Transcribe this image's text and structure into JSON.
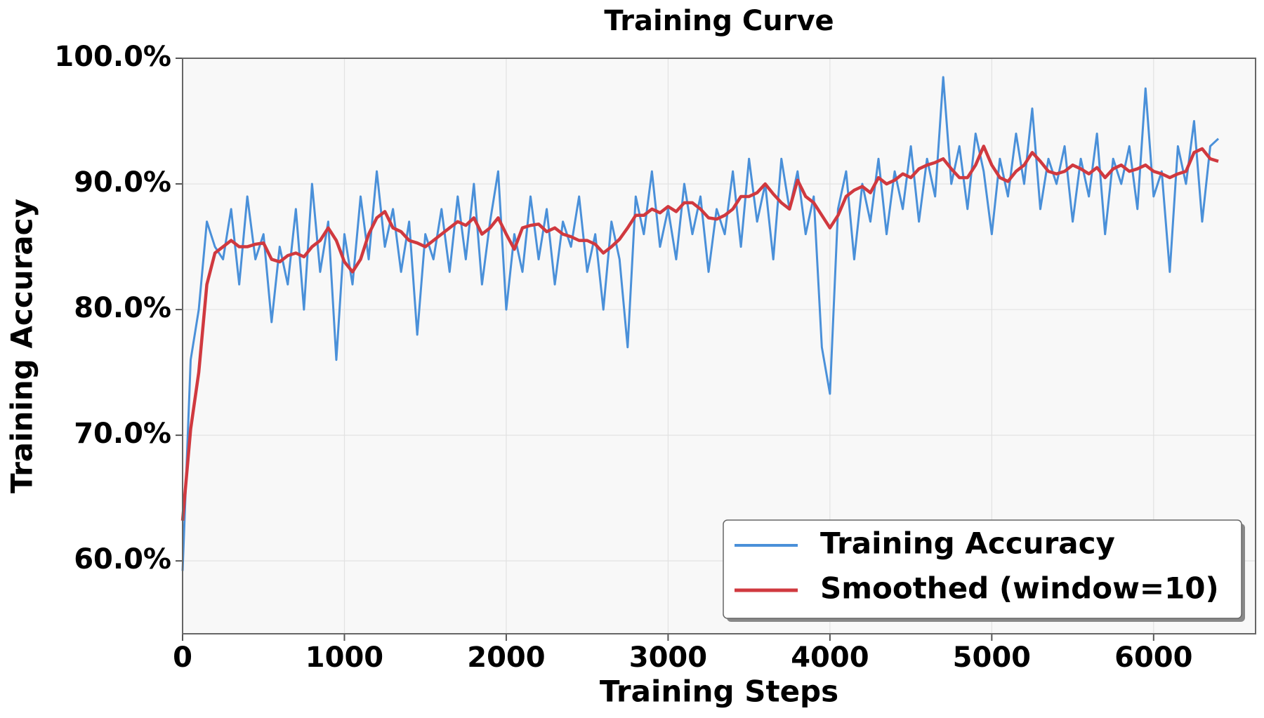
{
  "chart_data": {
    "type": "line",
    "title": "Training Curve",
    "x_label": "Training Steps",
    "y_label": "Training Accuracy",
    "x": [
      0,
      50,
      100,
      150,
      200,
      250,
      300,
      350,
      400,
      450,
      500,
      550,
      600,
      650,
      700,
      750,
      800,
      850,
      900,
      950,
      1000,
      1050,
      1100,
      1150,
      1200,
      1250,
      1300,
      1350,
      1400,
      1450,
      1500,
      1550,
      1600,
      1650,
      1700,
      1750,
      1800,
      1850,
      1900,
      1950,
      2000,
      2050,
      2100,
      2150,
      2200,
      2250,
      2300,
      2350,
      2400,
      2450,
      2500,
      2550,
      2600,
      2650,
      2700,
      2750,
      2800,
      2850,
      2900,
      2950,
      3000,
      3050,
      3100,
      3150,
      3200,
      3250,
      3300,
      3350,
      3400,
      3450,
      3500,
      3550,
      3600,
      3650,
      3700,
      3750,
      3800,
      3850,
      3900,
      3950,
      4000,
      4050,
      4100,
      4150,
      4200,
      4250,
      4300,
      4350,
      4400,
      4450,
      4500,
      4550,
      4600,
      4650,
      4700,
      4750,
      4800,
      4850,
      4900,
      4950,
      5000,
      5050,
      5100,
      5150,
      5200,
      5250,
      5300,
      5350,
      5400,
      5450,
      5500,
      5550,
      5600,
      5650,
      5700,
      5750,
      5800,
      5850,
      5900,
      5950,
      6000,
      6050,
      6100,
      6150,
      6200,
      6250,
      6300,
      6350,
      6400
    ],
    "series": [
      {
        "name": "Training Accuracy",
        "color": "#4a90d9",
        "values": [
          59.2,
          76,
          80,
          87,
          85,
          84,
          88,
          82,
          89,
          84,
          86,
          79,
          85,
          82,
          88,
          80,
          90,
          83,
          87,
          76,
          86,
          82,
          89,
          84,
          91,
          85,
          88,
          83,
          87,
          78,
          86,
          84,
          88,
          83,
          89,
          84,
          90,
          82,
          87,
          91,
          80,
          86,
          83,
          89,
          84,
          88,
          82,
          87,
          85,
          89,
          83,
          86,
          80,
          87,
          84,
          77,
          89,
          86,
          91,
          85,
          88,
          84,
          90,
          86,
          89,
          83,
          88,
          86,
          91,
          85,
          92,
          87,
          90,
          84,
          92,
          88,
          91,
          86,
          89,
          77,
          73.3,
          88,
          91,
          84,
          90,
          87,
          92,
          86,
          91,
          88,
          93,
          87,
          92,
          89,
          98.5,
          90,
          93,
          88,
          94,
          91,
          86,
          92,
          89,
          94,
          90,
          96,
          88,
          92,
          90,
          93,
          87,
          92,
          89,
          94,
          86,
          92,
          90,
          93,
          88,
          97.6,
          89,
          91,
          83,
          93,
          90,
          95,
          87,
          93,
          93.6
        ]
      },
      {
        "name": "Smoothed (window=10)",
        "color": "#d0393f",
        "values": [
          63.2,
          70.5,
          75,
          82,
          84.5,
          85,
          85.5,
          85,
          85,
          85.2,
          85.3,
          84,
          83.8,
          84.3,
          84.5,
          84.2,
          85,
          85.5,
          86.5,
          85.5,
          83.8,
          83,
          84,
          86,
          87.3,
          87.8,
          86.5,
          86.2,
          85.5,
          85.3,
          85,
          85.5,
          86,
          86.5,
          87,
          86.7,
          87.3,
          86,
          86.5,
          87.3,
          86,
          84.8,
          86.5,
          86.7,
          86.8,
          86.2,
          86.5,
          86,
          85.8,
          85.5,
          85.5,
          85.2,
          84.5,
          85,
          85.6,
          86.5,
          87.5,
          87.5,
          88,
          87.7,
          88.2,
          87.8,
          88.5,
          88.5,
          88,
          87.3,
          87.2,
          87.5,
          88,
          89,
          89,
          89.3,
          90,
          89.2,
          88.5,
          88,
          90.3,
          89,
          88.5,
          87.5,
          86.5,
          87.5,
          89,
          89.5,
          89.8,
          89.3,
          90.5,
          90,
          90.3,
          90.8,
          90.5,
          91.2,
          91.5,
          91.7,
          92,
          91.2,
          90.5,
          90.5,
          91.5,
          93,
          91.5,
          90.5,
          90.2,
          91,
          91.5,
          92.5,
          91.8,
          91,
          90.8,
          91,
          91.5,
          91.2,
          90.8,
          91.3,
          90.5,
          91.2,
          91.5,
          91,
          91.2,
          91.5,
          91,
          90.8,
          90.5,
          90.8,
          91,
          92.5,
          92.8,
          92,
          91.8
        ]
      }
    ],
    "xlim": [
      0,
      6630
    ],
    "ylim": [
      54.2,
      100
    ],
    "xticks": [
      0,
      1000,
      2000,
      3000,
      4000,
      5000,
      6000
    ],
    "yticks": [
      {
        "value": 60,
        "label": "60.0%"
      },
      {
        "value": 70,
        "label": "70.0%"
      },
      {
        "value": 80,
        "label": "80.0%"
      },
      {
        "value": 90,
        "label": "90.0%"
      },
      {
        "value": 100,
        "label": "100.0%"
      }
    ],
    "grid": true,
    "legend": "lower right"
  }
}
